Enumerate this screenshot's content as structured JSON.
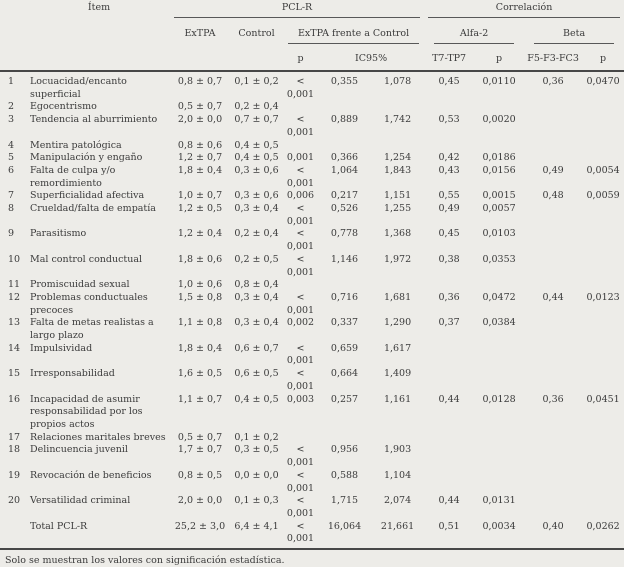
{
  "table": {
    "header": {
      "item": "Ítem",
      "pclr": "PCL-R",
      "correlacion": "Correlación",
      "extpa": "ExTPA",
      "control": "Control",
      "extpa_vs_control": "ExTPA frente a Control",
      "alfa2": "Alfa-2",
      "beta": "Beta",
      "p": "p",
      "ic95": "IC95%",
      "t7tp7": "T7-TP7",
      "f5f3fc3": "F5-F3-FC3"
    },
    "rows": [
      {
        "num": "1",
        "item": "Locuacidad/encanto superficial",
        "extpa": "0,8 ± 0,7",
        "control": "0,1 ± 0,2",
        "p": "< 0,001",
        "ic_low": "0,355",
        "ic_high": "1,078",
        "t7": "0,45",
        "p_alfa": "0,0110",
        "f5": "0,36",
        "p_beta": "0,0470"
      },
      {
        "num": "2",
        "item": "Egocentrismo",
        "extpa": "0,5 ± 0,7",
        "control": "0,2 ± 0,4"
      },
      {
        "num": "3",
        "item": "Tendencia al aburrimiento",
        "extpa": "2,0 ± 0,0",
        "control": "0,7 ± 0,7",
        "p": "< 0,001",
        "ic_low": "0,889",
        "ic_high": "1,742",
        "t7": "0,53",
        "p_alfa": "0,0020"
      },
      {
        "num": "4",
        "item": "Mentira patológica",
        "extpa": "0,8 ± 0,6",
        "control": "0,4 ± 0,5"
      },
      {
        "num": "5",
        "item": "Manipulación y engaño",
        "extpa": "1,2 ± 0,7",
        "control": "0,4 ± 0,5",
        "p": "0,001",
        "ic_low": "0,366",
        "ic_high": "1,254",
        "t7": "0,42",
        "p_alfa": "0,0186"
      },
      {
        "num": "6",
        "item": "Falta de culpa y/o remordimiento",
        "extpa": "1,8 ± 0,4",
        "control": "0,3 ± 0,6",
        "p": "< 0,001",
        "ic_low": "1,064",
        "ic_high": "1,843",
        "t7": "0,43",
        "p_alfa": "0,0156",
        "f5": "0,49",
        "p_beta": "0,0054"
      },
      {
        "num": "7",
        "item": "Superficialidad afectiva",
        "extpa": "1,0 ± 0,7",
        "control": "0,3 ± 0,6",
        "p": "0,006",
        "ic_low": "0,217",
        "ic_high": "1,151",
        "t7": "0,55",
        "p_alfa": "0,0015",
        "f5": "0,48",
        "p_beta": "0,0059"
      },
      {
        "num": "8",
        "item": "Crueldad/falta de empatía",
        "extpa": "1,2 ± 0,5",
        "control": "0,3 ± 0,4",
        "p": "< 0,001",
        "ic_low": "0,526",
        "ic_high": "1,255",
        "t7": "0,49",
        "p_alfa": "0,0057"
      },
      {
        "num": "9",
        "item": "Parasitismo",
        "extpa": "1,2 ± 0,4",
        "control": "0,2 ± 0,4",
        "p": "< 0,001",
        "ic_low": "0,778",
        "ic_high": "1,368",
        "t7": "0,45",
        "p_alfa": "0,0103"
      },
      {
        "num": "10",
        "item": "Mal control conductual",
        "extpa": "1,8 ± 0,6",
        "control": "0,2 ± 0,5",
        "p": "< 0,001",
        "ic_low": "1,146",
        "ic_high": "1,972",
        "t7": "0,38",
        "p_alfa": "0,0353"
      },
      {
        "num": "11",
        "item": "Promiscuidad sexual",
        "extpa": "1,0 ± 0,6",
        "control": "0,8 ± 0,4"
      },
      {
        "num": "12",
        "item": "Problemas conductuales precoces",
        "extpa": "1,5 ± 0,8",
        "control": "0,3 ± 0,4",
        "p": "< 0,001",
        "ic_low": "0,716",
        "ic_high": "1,681",
        "t7": "0,36",
        "p_alfa": "0,0472",
        "f5": "0,44",
        "p_beta": "0,0123"
      },
      {
        "num": "13",
        "item": "Falta de metas realistas a largo plazo",
        "extpa": "1,1 ± 0,8",
        "control": "0,3 ± 0,4",
        "p": "0,002",
        "ic_low": "0,337",
        "ic_high": "1,290",
        "t7": "0,37",
        "p_alfa": "0,0384"
      },
      {
        "num": "14",
        "item": "Impulsividad",
        "extpa": "1,8 ± 0,4",
        "control": "0,6 ± 0,7",
        "p": "< 0,001",
        "ic_low": "0,659",
        "ic_high": "1,617"
      },
      {
        "num": "15",
        "item": "Irresponsabilidad",
        "extpa": "1,6 ± 0,5",
        "control": "0,6 ± 0,5",
        "p": "< 0,001",
        "ic_low": "0,664",
        "ic_high": "1,409"
      },
      {
        "num": "16",
        "item": "Incapacidad de asumir responsabilidad por los propios actos",
        "extpa": "1,1 ± 0,7",
        "control": "0,4 ± 0,5",
        "p": "0,003",
        "ic_low": "0,257",
        "ic_high": "1,161",
        "t7": "0,44",
        "p_alfa": "0,0128",
        "f5": "0,36",
        "p_beta": "0,0451"
      },
      {
        "num": "17",
        "item": "Relaciones maritales breves",
        "extpa": "0,5 ± 0,7",
        "control": "0,1 ± 0,2"
      },
      {
        "num": "18",
        "item": "Delincuencia juvenil",
        "extpa": "1,7 ± 0,7",
        "control": "0,3 ± 0,5",
        "p": "< 0,001",
        "ic_low": "0,956",
        "ic_high": "1,903"
      },
      {
        "num": "19",
        "item": "Revocación de beneficios",
        "extpa": "0,8 ± 0,5",
        "control": "0,0 ± 0,0",
        "p": "< 0,001",
        "ic_low": "0,588",
        "ic_high": "1,104"
      },
      {
        "num": "20",
        "item": "Versatilidad criminal",
        "extpa": "2,0 ± 0,0",
        "control": "0,1 ± 0,3",
        "p": "< 0,001",
        "ic_low": "1,715",
        "ic_high": "2,074",
        "t7": "0,44",
        "p_alfa": "0,0131"
      },
      {
        "num": "",
        "item": "Total PCL-R",
        "extpa": "25,2 ± 3,0",
        "control": "6,4 ± 4,1",
        "p": "< 0,001",
        "ic_low": "16,064",
        "ic_high": "21,661",
        "t7": "0,51",
        "p_alfa": "0,0034",
        "f5": "0,40",
        "p_beta": "0,0262"
      }
    ],
    "footnote": "Solo se muestran los valores con significación estadística."
  }
}
